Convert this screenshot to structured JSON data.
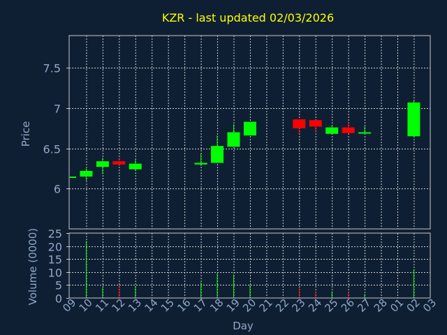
{
  "colors": {
    "background": "#0f1f33",
    "frame": "#c8c8c8",
    "grid": "#cfcfcf",
    "title": "#ffff00",
    "axis_text": "#8fa8c8",
    "up": "#00ff00",
    "down": "#ff0000"
  },
  "chart_data": {
    "type": "candlestick",
    "title": "KZR - last updated 02/03/2026",
    "xlabel": "Day",
    "price_panel": {
      "ylabel": "Price",
      "ylim": [
        5.5,
        7.9
      ],
      "yticks": [
        "6",
        "6.5",
        "7",
        "7.5"
      ],
      "ytick_values": [
        6,
        6.5,
        7,
        7.5
      ]
    },
    "volume_panel": {
      "ylabel": "Volume (0000)",
      "ylim": [
        0,
        25
      ],
      "yticks": [
        "0",
        "5",
        "10",
        "15",
        "20",
        "25"
      ],
      "ytick_values": [
        0,
        5,
        10,
        15,
        20,
        25
      ]
    },
    "xticks": [
      "09",
      "10",
      "11",
      "12",
      "13",
      "14",
      "15",
      "16",
      "17",
      "18",
      "19",
      "20",
      "21",
      "22",
      "23",
      "24",
      "25",
      "26",
      "27",
      "28",
      "01",
      "02",
      "03"
    ],
    "candles": [
      {
        "day": "09",
        "open": 6.15,
        "high": 6.15,
        "low": 6.15,
        "close": 6.15,
        "volume": 0
      },
      {
        "day": "10",
        "open": 6.15,
        "high": 6.25,
        "low": 6.1,
        "close": 6.22,
        "volume": 22
      },
      {
        "day": "11",
        "open": 6.27,
        "high": 6.38,
        "low": 6.18,
        "close": 6.34,
        "volume": 4
      },
      {
        "day": "12",
        "open": 6.34,
        "high": 6.38,
        "low": 6.28,
        "close": 6.3,
        "volume": 5
      },
      {
        "day": "13",
        "open": 6.24,
        "high": 6.36,
        "low": 6.22,
        "close": 6.31,
        "volume": 4.5
      },
      {
        "day": "17",
        "open": 6.3,
        "high": 6.44,
        "low": 6.28,
        "close": 6.32,
        "volume": 6
      },
      {
        "day": "18",
        "open": 6.32,
        "high": 6.66,
        "low": 6.32,
        "close": 6.53,
        "volume": 9.5
      },
      {
        "day": "19",
        "open": 6.52,
        "high": 6.8,
        "low": 6.52,
        "close": 6.7,
        "volume": 9
      },
      {
        "day": "20",
        "open": 6.66,
        "high": 6.83,
        "low": 6.66,
        "close": 6.83,
        "volume": 5
      },
      {
        "day": "23",
        "open": 6.86,
        "high": 6.86,
        "low": 6.68,
        "close": 6.75,
        "volume": 4
      },
      {
        "day": "24",
        "open": 6.85,
        "high": 6.85,
        "low": 6.7,
        "close": 6.77,
        "volume": 2.5
      },
      {
        "day": "25",
        "open": 6.68,
        "high": 6.78,
        "low": 6.68,
        "close": 6.76,
        "volume": 2.5
      },
      {
        "day": "26",
        "open": 6.76,
        "high": 6.83,
        "low": 6.68,
        "close": 6.69,
        "volume": 2.5
      },
      {
        "day": "27",
        "open": 6.69,
        "high": 6.77,
        "low": 6.69,
        "close": 6.7,
        "volume": 1.5
      },
      {
        "day": "02",
        "open": 6.65,
        "high": 7.1,
        "low": 6.65,
        "close": 7.07,
        "volume": 11
      }
    ]
  }
}
